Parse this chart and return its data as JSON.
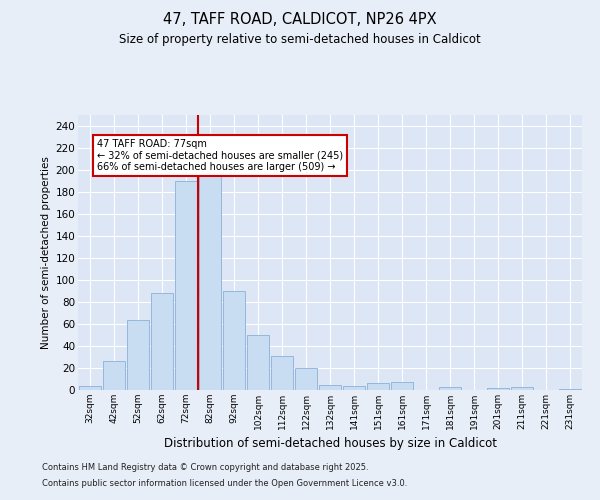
{
  "title_line1": "47, TAFF ROAD, CALDICOT, NP26 4PX",
  "title_line2": "Size of property relative to semi-detached houses in Caldicot",
  "xlabel": "Distribution of semi-detached houses by size in Caldicot",
  "ylabel": "Number of semi-detached properties",
  "categories": [
    "32sqm",
    "42sqm",
    "52sqm",
    "62sqm",
    "72sqm",
    "82sqm",
    "92sqm",
    "102sqm",
    "112sqm",
    "122sqm",
    "132sqm",
    "141sqm",
    "151sqm",
    "161sqm",
    "171sqm",
    "181sqm",
    "191sqm",
    "201sqm",
    "211sqm",
    "221sqm",
    "231sqm"
  ],
  "values": [
    4,
    26,
    64,
    88,
    190,
    195,
    90,
    50,
    31,
    20,
    5,
    4,
    6,
    7,
    0,
    3,
    0,
    2,
    3,
    0,
    1
  ],
  "bar_color": "#c9ddf2",
  "bar_edge_color": "#8ab0d8",
  "bar_linewidth": 0.6,
  "background_color": "#e8eef7",
  "plot_bg_color": "#dce6f5",
  "grid_color": "#ffffff",
  "red_line_x": 4.5,
  "annotation_text": "47 TAFF ROAD: 77sqm\n← 32% of semi-detached houses are smaller (245)\n66% of semi-detached houses are larger (509) →",
  "annotation_box_color": "#ffffff",
  "annotation_box_edge_color": "#cc0000",
  "red_line_color": "#cc0000",
  "ylim": [
    0,
    250
  ],
  "yticks": [
    0,
    20,
    40,
    60,
    80,
    100,
    120,
    140,
    160,
    180,
    200,
    220,
    240
  ],
  "footer_line1": "Contains HM Land Registry data © Crown copyright and database right 2025.",
  "footer_line2": "Contains public sector information licensed under the Open Government Licence v3.0."
}
